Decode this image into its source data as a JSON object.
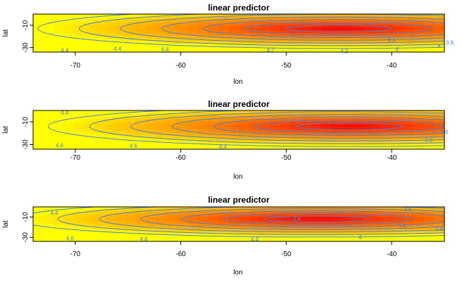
{
  "chart_data": [
    {
      "type": "heatmap",
      "title": "linear predictor",
      "xlabel": "lon",
      "ylabel": "lat",
      "xlim": [
        -74,
        -35
      ],
      "ylim": [
        -34,
        0
      ],
      "x_ticks": [
        -70,
        -60,
        -50,
        -40
      ],
      "y_ticks": [
        -30,
        -10
      ],
      "colors": {
        "low": "#ff0000",
        "mid": "#ff8800",
        "high": "#ffff00",
        "contour": "#4a7fd6"
      },
      "contour_levels": [
        3.6,
        3.8,
        4,
        4.2,
        4.4,
        4.6
      ],
      "contour_labels": [
        {
          "text": "4.4",
          "lon": -66.0,
          "lat": -31.0
        },
        {
          "text": "4.4",
          "lon": -61.5,
          "lat": -31.5
        },
        {
          "text": "4.2",
          "lon": -51.5,
          "lat": -32.0
        },
        {
          "text": "3.6",
          "lon": -40.0,
          "lat": -23.5
        },
        {
          "text": "3.8",
          "lon": -34.5,
          "lat": -25.5
        },
        {
          "text": "4",
          "lon": -35.5,
          "lat": -28.5
        },
        {
          "text": "4",
          "lon": -39.5,
          "lat": -31.5
        },
        {
          "text": "4.4",
          "lon": -71.0,
          "lat": -32.5
        },
        {
          "text": "4.2",
          "lon": -44.5,
          "lat": -33.0
        }
      ]
    },
    {
      "type": "heatmap",
      "title": "linear predictor",
      "xlabel": "lon",
      "ylabel": "lat",
      "xlim": [
        -74,
        -35
      ],
      "ylim": [
        -34,
        0
      ],
      "x_ticks": [
        -70,
        -60,
        -50,
        -40
      ],
      "y_ticks": [
        -30,
        -10
      ],
      "colors": {
        "low": "#ff0000",
        "mid": "#ff8800",
        "high": "#ffff00",
        "contour": "#4a7fd6"
      },
      "contour_levels": [
        3.6,
        3.8,
        4,
        4.2,
        4.4,
        4.6
      ],
      "contour_labels": [
        {
          "text": "4.4",
          "lon": -71.0,
          "lat": -2.0
        },
        {
          "text": "3.6",
          "lon": -35.0,
          "lat": -19.0
        },
        {
          "text": "3.8",
          "lon": -36.5,
          "lat": -26.0
        },
        {
          "text": "4.6",
          "lon": -71.5,
          "lat": -30.5
        },
        {
          "text": "4.6",
          "lon": -64.5,
          "lat": -31.0
        },
        {
          "text": "4.4",
          "lon": -56.0,
          "lat": -31.5
        }
      ]
    },
    {
      "type": "heatmap",
      "title": "linear predictor",
      "xlabel": "lon",
      "ylabel": "lat",
      "xlim": [
        -74,
        -35
      ],
      "ylim": [
        -34,
        0
      ],
      "x_ticks": [
        -70,
        -60,
        -50,
        -40
      ],
      "y_ticks": [
        -30,
        -10
      ],
      "colors": {
        "low": "#ff0000",
        "mid": "#ff8800",
        "high": "#ffff00",
        "contour": "#4a7fd6"
      },
      "contour_levels": [
        3.4,
        3.6,
        3.8,
        4,
        4.2,
        4.4,
        4.6
      ],
      "contour_labels": [
        {
          "text": "4.4",
          "lon": -72.0,
          "lat": -6.0
        },
        {
          "text": "3.4",
          "lon": -49.0,
          "lat": -12.0
        },
        {
          "text": "3.6",
          "lon": -38.5,
          "lat": -2.0
        },
        {
          "text": "3.6",
          "lon": -39.0,
          "lat": -19.0
        },
        {
          "text": "3.8",
          "lon": -35.5,
          "lat": -22.0
        },
        {
          "text": "4",
          "lon": -43.0,
          "lat": -30.0
        },
        {
          "text": "4.6",
          "lon": -70.5,
          "lat": -31.0
        },
        {
          "text": "4.6",
          "lon": -63.5,
          "lat": -31.5
        },
        {
          "text": "4.4",
          "lon": -53.0,
          "lat": -32.0
        }
      ]
    }
  ]
}
